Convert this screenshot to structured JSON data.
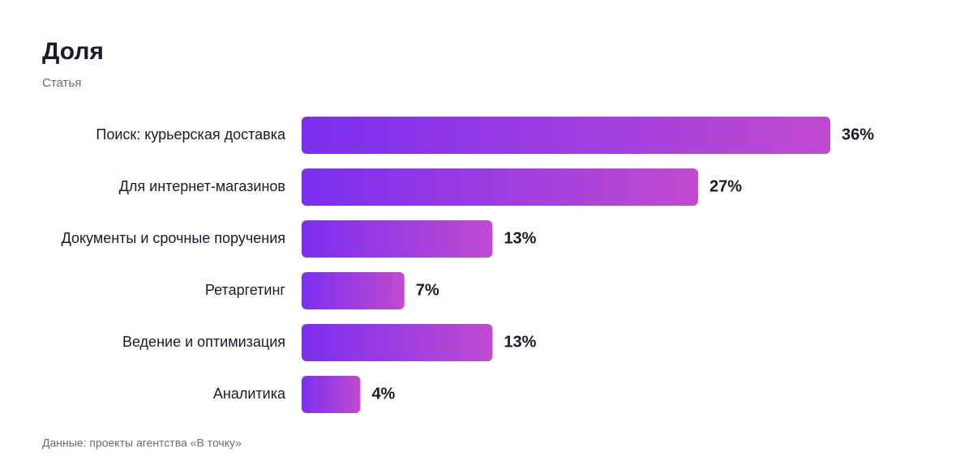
{
  "chart_data": {
    "type": "bar",
    "orientation": "horizontal",
    "title": "Доля",
    "subtitle": "Статья",
    "categories": [
      "Поиск: курьерская доставка",
      "Для интернет-магазинов",
      "Документы и срочные поручения",
      "Ретаргетинг",
      "Ведение и оптимизация",
      "Аналитика"
    ],
    "values": [
      36,
      27,
      13,
      7,
      13,
      4
    ],
    "value_labels": [
      "36%",
      "27%",
      "13%",
      "7%",
      "13%",
      "4%"
    ],
    "gradient": [
      "#7b2ff0",
      "#c04bcf"
    ],
    "source": "Данные: проекты агентства «В точку»"
  }
}
